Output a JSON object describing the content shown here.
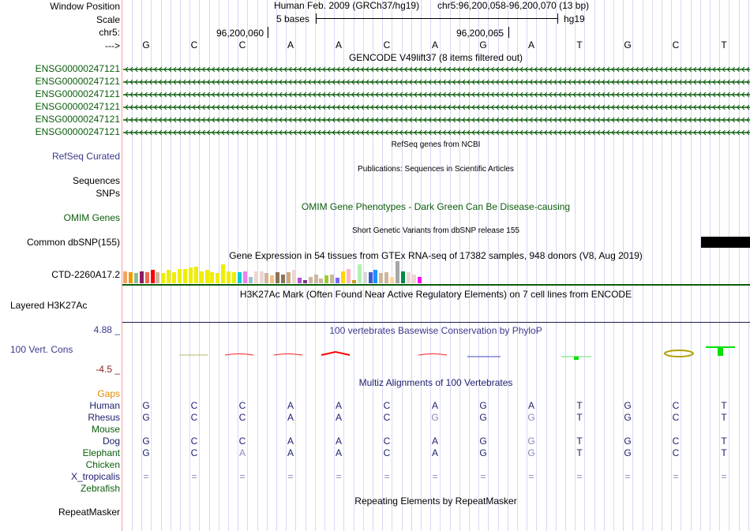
{
  "header": {
    "window_position_label": "Window Position",
    "scale_label": "Scale",
    "chrom_label": "chr5:",
    "strand_label": "--->",
    "assembly": "Human Feb. 2009 (GRCh37/hg19)",
    "position": "chr5:96,200,058-96,200,070 (13 bp)",
    "scale_text": "5 bases",
    "scale_db": "hg19",
    "coord_ticks": [
      "96,200,060",
      "96,200,065"
    ],
    "bases": [
      "G",
      "C",
      "C",
      "A",
      "A",
      "C",
      "A",
      "G",
      "A",
      "T",
      "G",
      "C",
      "T"
    ]
  },
  "tracks": {
    "gencode": {
      "title": "GENCODE V49lift37 (8 items filtered out)",
      "items": [
        "ENSG00000247121",
        "ENSG00000247121",
        "ENSG00000247121",
        "ENSG00000247121",
        "ENSG00000247121",
        "ENSG00000247121"
      ],
      "color": "#0b5e0b"
    },
    "refseq": {
      "label": "RefSeq Curated",
      "title": "RefSeq genes from NCBI"
    },
    "publications": {
      "label_1": "Sequences",
      "label_2": "SNPs",
      "title": "Publications: Sequences in Scientific Articles"
    },
    "omim": {
      "label": "OMIM Genes",
      "title": "OMIM Gene Phenotypes - Dark Green Can Be Disease-causing"
    },
    "dbsnp": {
      "label": "Common dbSNP(155)",
      "title": "Short Genetic Variants from dbSNP release 155"
    },
    "gtex": {
      "label": "CTD-2260A17.2",
      "title": "Gene Expression in 54 tissues from GTEx RNA-seq of 17382 samples, 948 donors (V8, Aug 2019)",
      "bars": [
        {
          "color": "#f4a460",
          "value": 0.55
        },
        {
          "color": "#ee9a00",
          "value": 0.5
        },
        {
          "color": "#8fbc8f",
          "value": 0.45
        },
        {
          "color": "#8b1c62",
          "value": 0.55
        },
        {
          "color": "#ee6a50",
          "value": 0.5
        },
        {
          "color": "#ff0000",
          "value": 0.6
        },
        {
          "color": "#cdb79e",
          "value": 0.5
        },
        {
          "color": "#eeee00",
          "value": 0.45
        },
        {
          "color": "#eeee00",
          "value": 0.6
        },
        {
          "color": "#eeee00",
          "value": 0.5
        },
        {
          "color": "#eeee00",
          "value": 0.65
        },
        {
          "color": "#eeee00",
          "value": 0.65
        },
        {
          "color": "#eeee00",
          "value": 0.7
        },
        {
          "color": "#eeee00",
          "value": 0.75
        },
        {
          "color": "#eeee00",
          "value": 0.55
        },
        {
          "color": "#eeee00",
          "value": 0.6
        },
        {
          "color": "#eeee00",
          "value": 0.5
        },
        {
          "color": "#eeee00",
          "value": 0.45
        },
        {
          "color": "#eeee00",
          "value": 0.85
        },
        {
          "color": "#eeee00",
          "value": 0.55
        },
        {
          "color": "#eeee00",
          "value": 0.5
        },
        {
          "color": "#00cdcd",
          "value": 0.5
        },
        {
          "color": "#ee82ee",
          "value": 0.55
        },
        {
          "color": "#9ac0cd",
          "value": 0.3
        },
        {
          "color": "#eed5d2",
          "value": 0.55
        },
        {
          "color": "#eed5d2",
          "value": 0.55
        },
        {
          "color": "#cdb79e",
          "value": 0.45
        },
        {
          "color": "#f4c281",
          "value": 0.35
        },
        {
          "color": "#8b7355",
          "value": 0.5
        },
        {
          "color": "#8b7355",
          "value": 0.4
        },
        {
          "color": "#cdaa7d",
          "value": 0.5
        },
        {
          "color": "#eed5d2",
          "value": 0.6
        },
        {
          "color": "#b452cd",
          "value": 0.25
        },
        {
          "color": "#7a378b",
          "value": 0.15
        },
        {
          "color": "#cdb79e",
          "value": 0.3
        },
        {
          "color": "#cdb79e",
          "value": 0.4
        },
        {
          "color": "#cdb79e",
          "value": 0.2
        },
        {
          "color": "#9acd32",
          "value": 0.35
        },
        {
          "color": "#cdb79e",
          "value": 0.4
        },
        {
          "color": "#7b68ee",
          "value": 0.25
        },
        {
          "color": "#ffd700",
          "value": 0.55
        },
        {
          "color": "#ffb6c1",
          "value": 0.65
        },
        {
          "color": "#cd9b1d",
          "value": 0.15
        },
        {
          "color": "#b4eeb4",
          "value": 0.85
        },
        {
          "color": "#d9d9d9",
          "value": 0.5
        },
        {
          "color": "#3a5fcd",
          "value": 0.5
        },
        {
          "color": "#1e90ff",
          "value": 0.6
        },
        {
          "color": "#cdb79e",
          "value": 0.45
        },
        {
          "color": "#cdb79e",
          "value": 0.5
        },
        {
          "color": "#ffd39b",
          "value": 0.3
        },
        {
          "color": "#a6a6a6",
          "value": 1.0
        },
        {
          "color": "#008b45",
          "value": 0.55
        },
        {
          "color": "#eed5d2",
          "value": 0.5
        },
        {
          "color": "#eed5d2",
          "value": 0.4
        },
        {
          "color": "#ff00ff",
          "value": 0.3
        }
      ]
    },
    "h3k27ac": {
      "label": "Layered H3K27Ac",
      "title": "H3K27Ac Mark (Often Found Near Active Regulatory Elements) on 7 cell lines from ENCODE"
    },
    "cons": {
      "label": "100 Vert. Cons",
      "max": "4.88 _",
      "min": "-4.5 _",
      "title": "100 vertebrates Basewise Conservation by PhyloP"
    },
    "multiz": {
      "title": "Multiz Alignments of 100 Vertebrates",
      "gaps_label": "Gaps",
      "species": [
        {
          "name": "Human",
          "color": "blue",
          "bases": [
            "G",
            "C",
            "C",
            "A",
            "A",
            "C",
            "A",
            "G",
            "A",
            "T",
            "G",
            "C",
            "T"
          ],
          "faded": []
        },
        {
          "name": "Rhesus",
          "color": "blue",
          "bases": [
            "G",
            "C",
            "C",
            "A",
            "A",
            "C",
            "G",
            "G",
            "G",
            "T",
            "G",
            "C",
            "T"
          ],
          "faded": [
            6,
            8
          ]
        },
        {
          "name": "Mouse",
          "color": "green",
          "bases": [],
          "faded": []
        },
        {
          "name": "Dog",
          "color": "blue",
          "bases": [
            "G",
            "C",
            "C",
            "A",
            "A",
            "C",
            "A",
            "G",
            "G",
            "T",
            "G",
            "C",
            "T"
          ],
          "faded": [
            8
          ]
        },
        {
          "name": "Elephant",
          "color": "green",
          "bases": [
            "G",
            "C",
            "A",
            "A",
            "A",
            "C",
            "A",
            "G",
            "G",
            "T",
            "G",
            "C",
            "T"
          ],
          "faded": [
            2,
            8
          ]
        },
        {
          "name": "Chicken",
          "color": "green",
          "bases": [],
          "faded": []
        },
        {
          "name": "X_tropicalis",
          "color": "blue",
          "bases": [
            "=",
            "=",
            "=",
            "=",
            "=",
            "=",
            "=",
            "=",
            "=",
            "=",
            "=",
            "=",
            "="
          ],
          "faded": [
            0,
            1,
            2,
            3,
            4,
            5,
            6,
            7,
            8,
            9,
            10,
            11,
            12
          ]
        },
        {
          "name": "Zebrafish",
          "color": "green",
          "bases": [],
          "faded": []
        }
      ]
    },
    "repeatmasker": {
      "label": "RepeatMasker",
      "title": "Repeating Elements by RepeatMasker"
    }
  }
}
